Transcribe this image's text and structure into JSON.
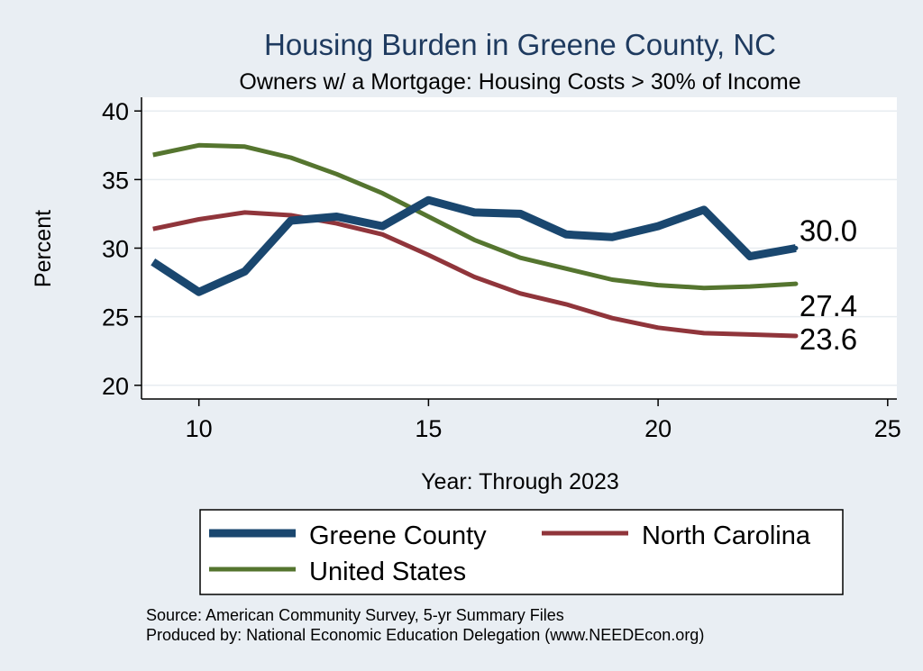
{
  "chart_data": {
    "type": "line",
    "title": "Housing Burden in Greene County, NC",
    "subtitle": "Owners w/ a Mortgage: Housing Costs > 30% of Income",
    "xlabel": "Year: Through 2023",
    "ylabel": "Percent",
    "xlim": [
      8.75,
      25.2
    ],
    "ylim": [
      19,
      41
    ],
    "xticks": [
      10,
      15,
      20,
      25
    ],
    "yticks": [
      20,
      25,
      30,
      35,
      40
    ],
    "grid": true,
    "x": [
      9,
      10,
      11,
      12,
      13,
      14,
      15,
      16,
      17,
      18,
      19,
      20,
      21,
      22,
      23
    ],
    "series": [
      {
        "name": "Greene County",
        "color": "#1a476f",
        "values": [
          29.0,
          26.8,
          28.3,
          32.0,
          32.3,
          31.6,
          33.5,
          32.6,
          32.5,
          31.0,
          30.8,
          31.6,
          32.8,
          29.4,
          30.0
        ],
        "end_label": "30.0"
      },
      {
        "name": "North Carolina",
        "color": "#90353b",
        "values": [
          31.4,
          32.1,
          32.6,
          32.4,
          31.8,
          31.0,
          29.5,
          27.9,
          26.7,
          25.9,
          24.9,
          24.2,
          23.8,
          23.7,
          23.6
        ],
        "end_label": "23.6"
      },
      {
        "name": "United States",
        "color": "#55752f",
        "values": [
          36.8,
          37.5,
          37.4,
          36.6,
          35.4,
          34.0,
          32.3,
          30.6,
          29.3,
          28.5,
          27.7,
          27.3,
          27.1,
          27.2,
          27.4
        ],
        "end_label": "27.4"
      }
    ],
    "legend_position": "bottom"
  },
  "source_note": "Source: American Community Survey, 5-yr Summary Files",
  "produced_note": "Produced by: National Economic Education Delegation (www.NEEDEcon.org)"
}
